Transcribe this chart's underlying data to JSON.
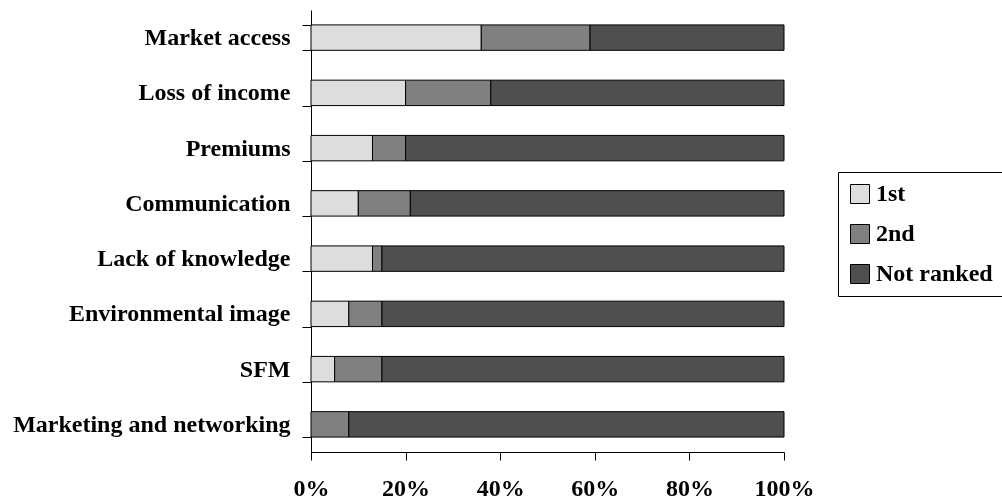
{
  "chart_data": {
    "type": "bar",
    "orientation": "horizontal",
    "stacked": true,
    "categories": [
      "Market access",
      "Loss of income",
      "Premiums",
      "Communication",
      "Lack of knowledge",
      "Environmental image",
      "SFM",
      "Marketing and networking"
    ],
    "series": [
      {
        "name": "1st",
        "color": "#dddddd",
        "values": [
          36,
          20,
          13,
          10,
          13,
          8,
          5,
          null
        ]
      },
      {
        "name": "2nd",
        "color": "#808080",
        "values": [
          23,
          18,
          7,
          11,
          2,
          7,
          10,
          8
        ]
      },
      {
        "name": "Not ranked",
        "color": "#4f4f4f",
        "values": [
          41,
          62,
          80,
          79,
          85,
          85,
          85,
          92
        ]
      }
    ],
    "xlim": [
      0,
      100
    ],
    "xticks": [
      {
        "value": 0,
        "label": "0%"
      },
      {
        "value": 20,
        "label": "20%"
      },
      {
        "value": 40,
        "label": "40%"
      },
      {
        "value": 60,
        "label": "60%"
      },
      {
        "value": 80,
        "label": "80%"
      },
      {
        "value": 100,
        "label": "100%"
      }
    ],
    "legend": "right"
  }
}
